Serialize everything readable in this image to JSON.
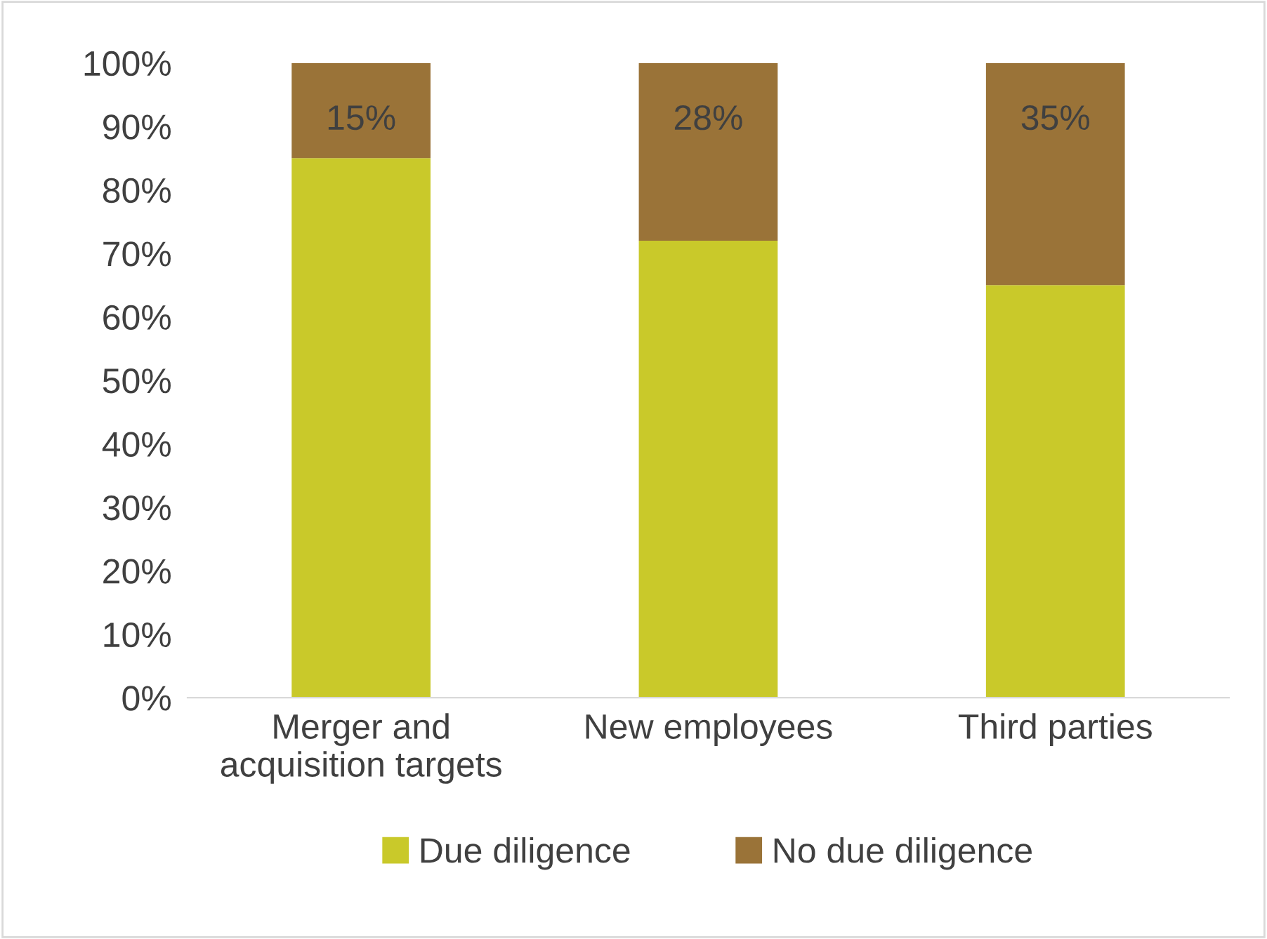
{
  "chart_data": {
    "type": "bar",
    "stacked": true,
    "categories": [
      "Merger and\nacquisition targets",
      "New employees",
      "Third parties"
    ],
    "series": [
      {
        "name": "Due diligence",
        "color": "#c9c92a",
        "values": [
          85,
          72,
          65
        ]
      },
      {
        "name": "No due diligence",
        "color": "#9a7338",
        "values": [
          15,
          28,
          35
        ],
        "value_labels": [
          "15%",
          "28%",
          "35%"
        ]
      }
    ],
    "ylim": [
      0,
      100
    ],
    "yticks": [
      {
        "value": 0,
        "label": "0%"
      },
      {
        "value": 10,
        "label": "10%"
      },
      {
        "value": 20,
        "label": "20%"
      },
      {
        "value": 30,
        "label": "30%"
      },
      {
        "value": 40,
        "label": "40%"
      },
      {
        "value": 50,
        "label": "50%"
      },
      {
        "value": 60,
        "label": "60%"
      },
      {
        "value": 70,
        "label": "70%"
      },
      {
        "value": 80,
        "label": "80%"
      },
      {
        "value": 90,
        "label": "90%"
      },
      {
        "value": 100,
        "label": "100%"
      }
    ],
    "grid": false,
    "legend": "bottom"
  }
}
